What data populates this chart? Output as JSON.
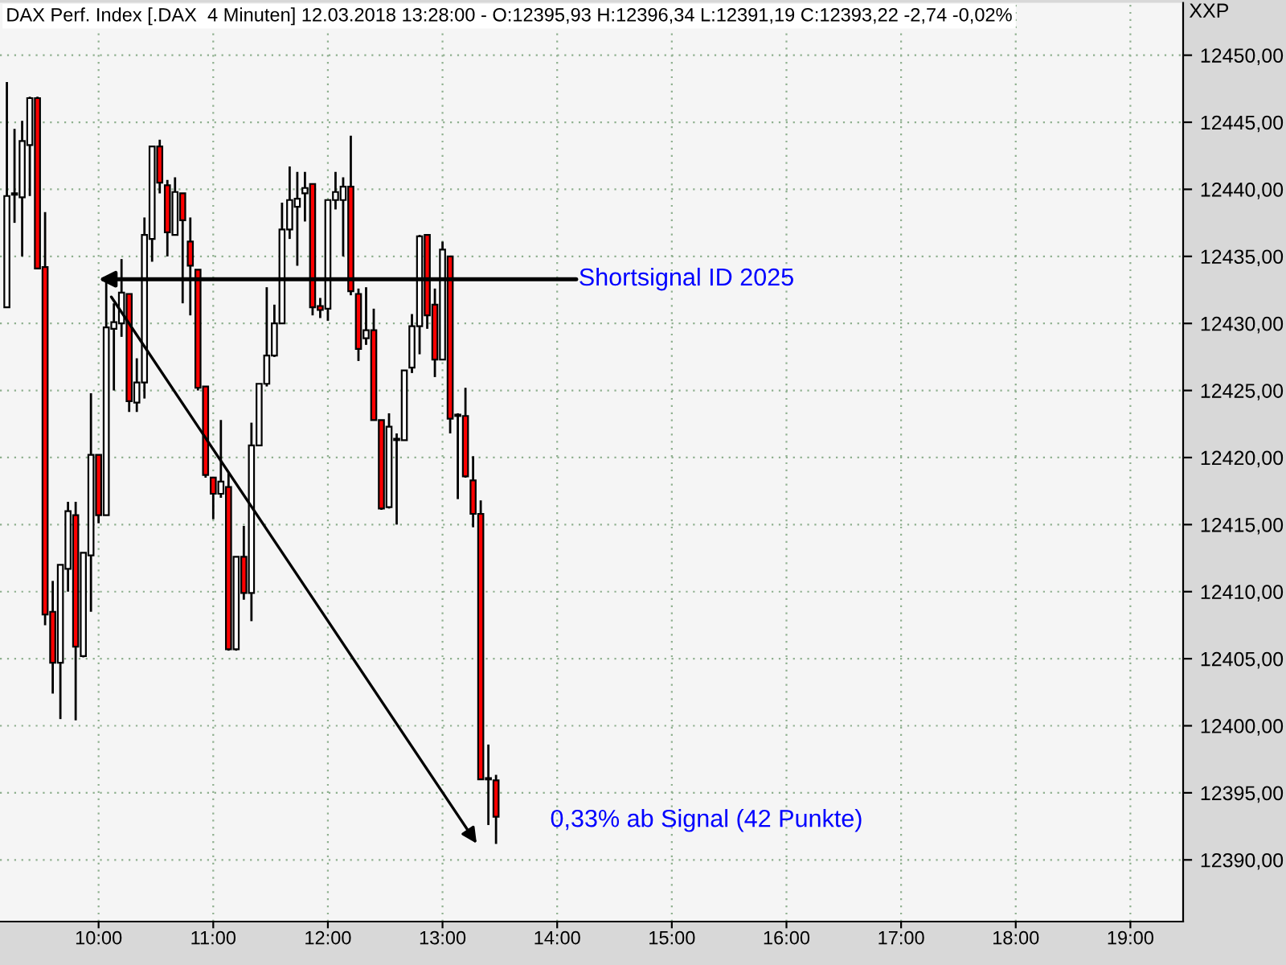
{
  "chart_data": {
    "type": "candlestick",
    "title": "DAX Perf. Index [.DAX  4 Minuten] 12.03.2018 13:28:00 - O:12395,93 H:12396,34 L:12391,19 C:12393,22 -2,74 -0,02%",
    "ylabel": "XXP",
    "x": [
      9.2,
      9.2667,
      9.3333,
      9.4,
      9.4667,
      9.5333,
      9.6,
      9.6667,
      9.7333,
      9.8,
      9.8667,
      9.9333,
      10.0,
      10.0667,
      10.1333,
      10.2,
      10.2667,
      10.3333,
      10.4,
      10.4667,
      10.5333,
      10.6,
      10.6667,
      10.7333,
      10.8,
      10.8667,
      10.9333,
      11.0,
      11.0667,
      11.1333,
      11.2,
      11.2667,
      11.3333,
      11.4,
      11.4667,
      11.5333,
      11.6,
      11.6667,
      11.7333,
      11.8,
      11.8667,
      11.9333,
      12.0,
      12.0667,
      12.1333,
      12.2,
      12.2667,
      12.3333,
      12.4,
      12.4667,
      12.5333,
      12.6,
      12.6667,
      12.7333,
      12.8,
      12.8667,
      12.9333,
      13.0,
      13.0667,
      13.1333,
      13.2,
      13.2667,
      13.3333,
      13.4,
      13.4667
    ],
    "ohlc": [
      [
        12431.2,
        12448.0,
        12431.2,
        12439.5
      ],
      [
        12439.6,
        12444.5,
        12437.5,
        12439.7
      ],
      [
        12439.4,
        12445.1,
        12435.0,
        12443.6
      ],
      [
        12443.3,
        12446.9,
        12439.5,
        12446.8
      ],
      [
        12446.8,
        12446.9,
        12434.1,
        12434.1
      ],
      [
        12434.2,
        12438.3,
        12407.5,
        12408.3
      ],
      [
        12408.5,
        12410.8,
        12402.4,
        12404.7
      ],
      [
        12404.7,
        12412.0,
        12400.5,
        12412.0
      ],
      [
        12411.7,
        12416.7,
        12410.0,
        12416.0
      ],
      [
        12415.7,
        12416.7,
        12400.4,
        12405.9
      ],
      [
        12405.2,
        12412.9,
        12405.1,
        12412.9
      ],
      [
        12412.7,
        12424.8,
        12408.5,
        12420.2
      ],
      [
        12420.2,
        12420.2,
        12415.1,
        12415.7
      ],
      [
        12415.7,
        12433.4,
        12415.7,
        12429.7
      ],
      [
        12429.6,
        12431.5,
        12425.0,
        12430.1
      ],
      [
        12430.0,
        12434.8,
        12429.0,
        12432.3
      ],
      [
        12432.2,
        12432.2,
        12423.4,
        12424.2
      ],
      [
        12424.1,
        12427.4,
        12423.4,
        12425.6
      ],
      [
        12425.6,
        12437.9,
        12424.4,
        12436.6
      ],
      [
        12436.3,
        12443.2,
        12434.6,
        12443.2
      ],
      [
        12443.2,
        12443.7,
        12439.7,
        12440.5
      ],
      [
        12440.3,
        12440.7,
        12435.0,
        12436.8
      ],
      [
        12436.6,
        12440.9,
        12436.6,
        12439.8
      ],
      [
        12439.7,
        12439.7,
        12431.5,
        12437.7
      ],
      [
        12436.1,
        12437.9,
        12430.6,
        12434.3
      ],
      [
        12434.0,
        12434.0,
        12425.0,
        12425.2
      ],
      [
        12425.3,
        12425.3,
        12418.5,
        12418.7
      ],
      [
        12418.5,
        12418.5,
        12415.4,
        12417.3
      ],
      [
        12417.3,
        12422.8,
        12417.0,
        12418.2
      ],
      [
        12417.8,
        12418.9,
        12405.6,
        12405.7
      ],
      [
        12405.7,
        12412.6,
        12405.6,
        12412.6
      ],
      [
        12412.6,
        12414.9,
        12409.4,
        12409.9
      ],
      [
        12409.9,
        12422.6,
        12407.8,
        12420.9
      ],
      [
        12420.9,
        12425.5,
        12420.9,
        12425.5
      ],
      [
        12425.5,
        12432.7,
        12425.3,
        12427.6
      ],
      [
        12427.6,
        12431.4,
        12427.5,
        12430.0
      ],
      [
        12430.0,
        12439.0,
        12430.0,
        12437.0
      ],
      [
        12437.0,
        12441.7,
        12436.3,
        12439.2
      ],
      [
        12438.7,
        12441.3,
        12434.3,
        12439.3
      ],
      [
        12439.7,
        12441.3,
        12437.6,
        12440.1
      ],
      [
        12440.4,
        12440.4,
        12430.6,
        12431.2
      ],
      [
        12431.3,
        12431.9,
        12430.4,
        12431.0
      ],
      [
        12431.1,
        12439.2,
        12430.2,
        12439.2
      ],
      [
        12439.2,
        12441.3,
        12438.5,
        12439.8
      ],
      [
        12439.2,
        12440.9,
        12435.0,
        12440.2
      ],
      [
        12440.2,
        12444.0,
        12432.1,
        12432.4
      ],
      [
        12432.2,
        12432.6,
        12427.2,
        12428.1
      ],
      [
        12428.9,
        12432.7,
        12428.4,
        12429.5
      ],
      [
        12429.5,
        12431.1,
        12422.8,
        12422.8
      ],
      [
        12422.8,
        12422.8,
        12416.1,
        12416.2
      ],
      [
        12416.3,
        12423.3,
        12416.2,
        12422.3
      ],
      [
        12421.3,
        12421.8,
        12415.0,
        12421.4
      ],
      [
        12421.3,
        12426.5,
        12421.3,
        12426.5
      ],
      [
        12426.7,
        12430.7,
        12426.3,
        12429.8
      ],
      [
        12429.8,
        12436.6,
        12427.7,
        12436.5
      ],
      [
        12436.6,
        12436.6,
        12429.6,
        12430.6
      ],
      [
        12431.4,
        12432.6,
        12426.0,
        12427.3
      ],
      [
        12427.3,
        12436.1,
        12427.3,
        12435.5
      ],
      [
        12435.0,
        12435.0,
        12421.8,
        12422.9
      ],
      [
        12423.1,
        12423.3,
        12416.9,
        12423.2
      ],
      [
        12423.1,
        12425.2,
        12418.5,
        12418.6
      ],
      [
        12418.3,
        12420.1,
        12414.8,
        12415.8
      ],
      [
        12415.8,
        12416.8,
        12396.0,
        12396.0
      ],
      [
        12396.0,
        12398.6,
        12392.6,
        12396.1
      ],
      [
        12395.93,
        12396.34,
        12391.19,
        12393.22
      ]
    ],
    "colors": [
      "#ffffff",
      "#ffffff",
      "#ffffff",
      "#ffffff",
      "#ff0000",
      "#ff0000",
      "#ff0000",
      "#ffffff",
      "#ffffff",
      "#ff0000",
      "#ffffff",
      "#ffffff",
      "#ff0000",
      "#ffffff",
      "#ffffff",
      "#ffffff",
      "#ff0000",
      "#ffffff",
      "#ffffff",
      "#ffffff",
      "#ff0000",
      "#ff0000",
      "#ffffff",
      "#ff0000",
      "#ff0000",
      "#ff0000",
      "#ff0000",
      "#ff0000",
      "#ffffff",
      "#ff0000",
      "#ffffff",
      "#ff0000",
      "#ffffff",
      "#ffffff",
      "#ffffff",
      "#ffffff",
      "#ffffff",
      "#ffffff",
      "#ffffff",
      "#ffffff",
      "#ff0000",
      "#ff0000",
      "#ffffff",
      "#ffffff",
      "#ffffff",
      "#ff0000",
      "#ff0000",
      "#ffffff",
      "#ff0000",
      "#ff0000",
      "#ffffff",
      "#ffffff",
      "#ffffff",
      "#ffffff",
      "#ffffff",
      "#ff0000",
      "#ff0000",
      "#ffffff",
      "#ff0000",
      "#ffffff",
      "#ff0000",
      "#ff0000",
      "#ff0000",
      "#ffffff",
      "#ff0000"
    ],
    "xlim": [
      9.14,
      19.46
    ],
    "xticks": [
      {
        "value": 10,
        "label": "10:00"
      },
      {
        "value": 11,
        "label": "11:00"
      },
      {
        "value": 12,
        "label": "12:00"
      },
      {
        "value": 13,
        "label": "13:00"
      },
      {
        "value": 14,
        "label": "14:00"
      },
      {
        "value": 15,
        "label": "15:00"
      },
      {
        "value": 16,
        "label": "16:00"
      },
      {
        "value": 17,
        "label": "17:00"
      },
      {
        "value": 18,
        "label": "18:00"
      },
      {
        "value": 19,
        "label": "19:00"
      }
    ],
    "ylim": [
      12385.4,
      12453.9
    ],
    "yticks": [
      {
        "value": 12390,
        "label": "12390,00"
      },
      {
        "value": 12395,
        "label": "12395,00"
      },
      {
        "value": 12400,
        "label": "12400,00"
      },
      {
        "value": 12405,
        "label": "12405,00"
      },
      {
        "value": 12410,
        "label": "12410,00"
      },
      {
        "value": 12415,
        "label": "12415,00"
      },
      {
        "value": 12420,
        "label": "12420,00"
      },
      {
        "value": 12425,
        "label": "12425,00"
      },
      {
        "value": 12430,
        "label": "12430,00"
      },
      {
        "value": 12435,
        "label": "12435,00"
      },
      {
        "value": 12440,
        "label": "12440,00"
      },
      {
        "value": 12445,
        "label": "12445,00"
      },
      {
        "value": 12450,
        "label": "12450,00"
      }
    ],
    "grid": true,
    "annotations": [
      {
        "text": "Shortsignal ID 2025",
        "x": 10.0,
        "y": 12433.3
      },
      "0,33% ab Signal (42 Punkte)"
    ]
  }
}
